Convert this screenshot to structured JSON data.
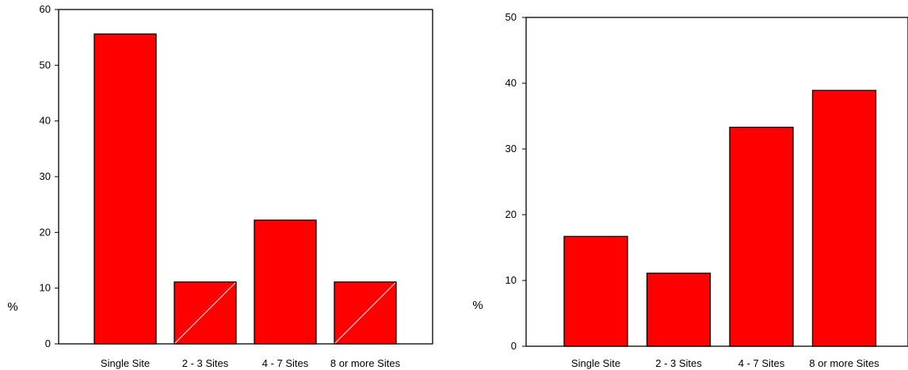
{
  "colors": {
    "bar": "#ff0000",
    "axis": "#000000",
    "background": "#ffffff",
    "diag": "#ffffff"
  },
  "chart_data": [
    {
      "type": "bar",
      "title": "",
      "xlabel": "",
      "ylabel": "%",
      "ylim": [
        0,
        60
      ],
      "yticks": [
        0,
        10,
        20,
        30,
        40,
        50,
        60
      ],
      "ytick_labels": [
        "0",
        "10",
        "20",
        "30",
        "40",
        "50",
        "60"
      ],
      "categories": [
        "Single Site",
        "2 - 3 Sites",
        "4 - 7 Sites",
        "8 or more Sites"
      ],
      "values": [
        55.6,
        11.1,
        22.2,
        11.1
      ],
      "grid": false,
      "legend": "none"
    },
    {
      "type": "bar",
      "title": "",
      "xlabel": "",
      "ylabel": "%",
      "ylim": [
        0,
        50
      ],
      "yticks": [
        0,
        10,
        20,
        30,
        40,
        50
      ],
      "ytick_labels": [
        "0",
        "10",
        "20",
        "30",
        "40",
        "50"
      ],
      "categories": [
        "Single Site",
        "2 - 3 Sites",
        "4 - 7 Sites",
        "8 or more Sites"
      ],
      "values": [
        16.7,
        11.1,
        33.3,
        38.9
      ],
      "grid": false,
      "legend": "none"
    }
  ]
}
